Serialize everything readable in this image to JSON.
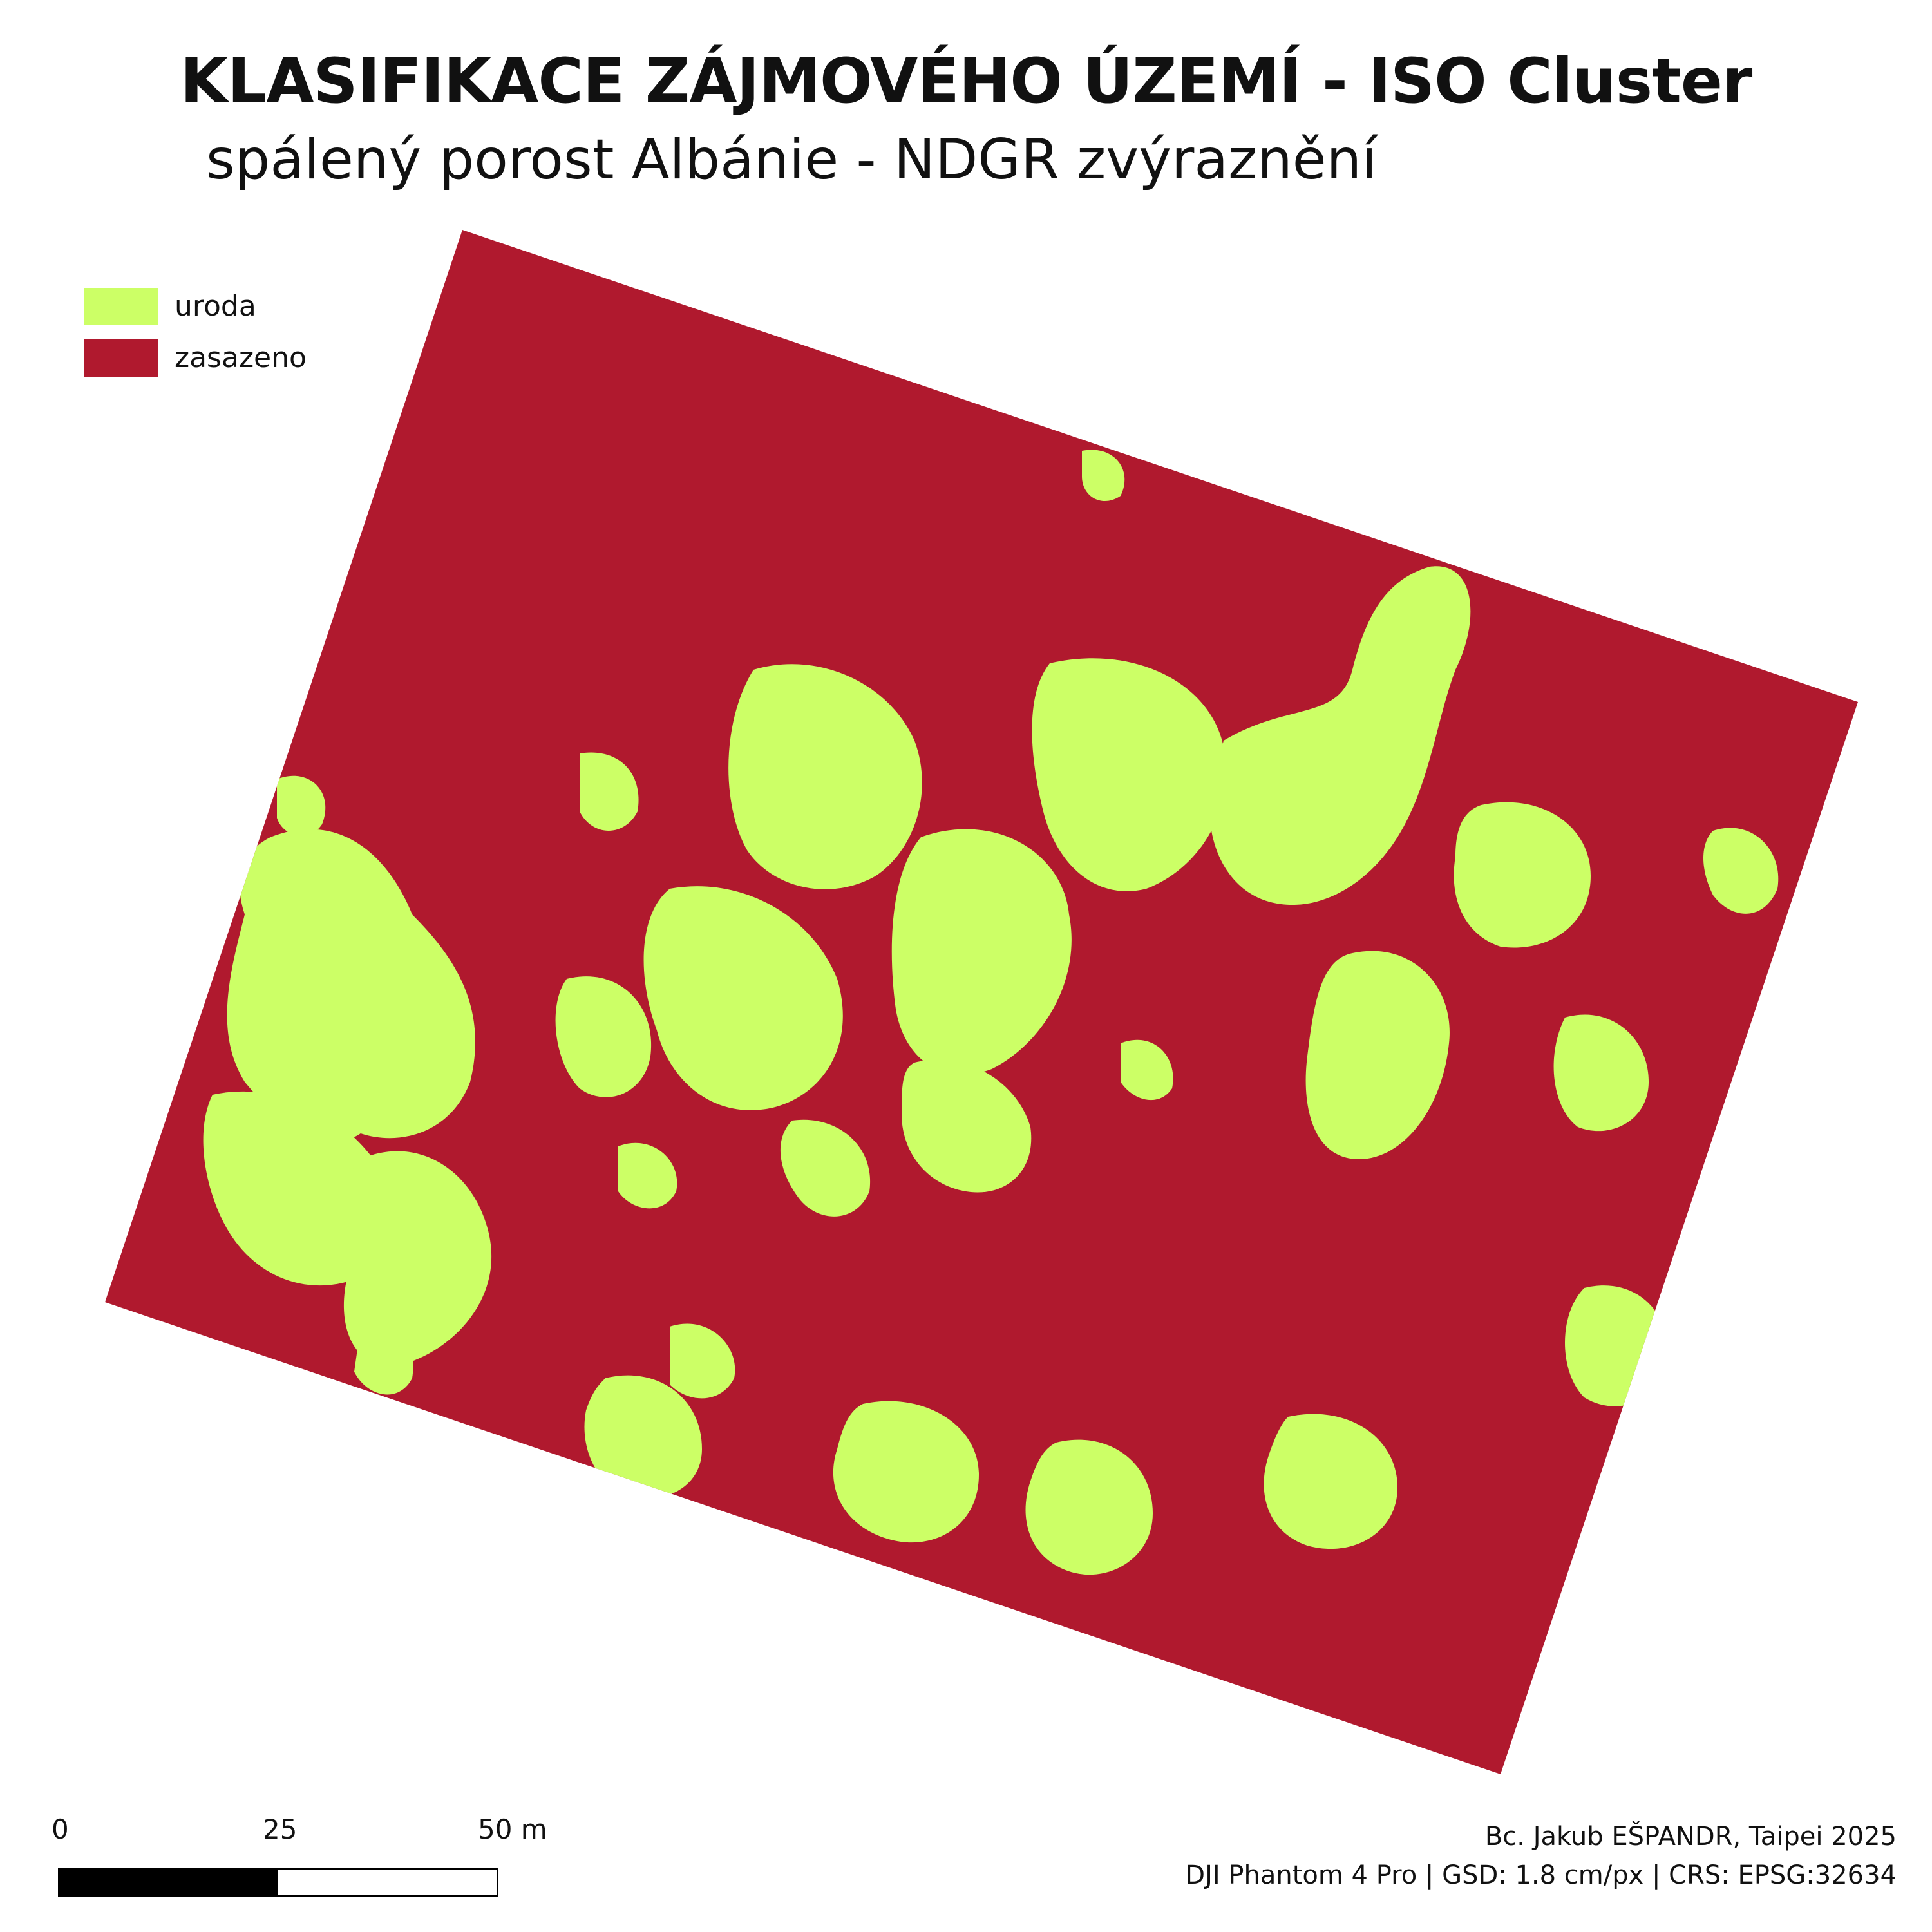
{
  "title": "KLASIFIKACE ZÁJMOVÉHO ÚZEMÍ - ISO Cluster",
  "subtitle": "spálený porost Albánie - NDGR zvýraznění",
  "legend": [
    {
      "label": "uroda",
      "color": "#CCFF66"
    },
    {
      "label": "zasazeno",
      "color": "#B0192E"
    }
  ],
  "scalebar": {
    "ticks": [
      "0",
      "25",
      "50 m"
    ]
  },
  "credits": {
    "line1": "Bc. Jakub EŠPANDR, Taipei 2025",
    "line2": "DJI Phantom 4 Pro | GSD: 1.8 cm/px | CRS: EPSG:32634"
  },
  "colors": {
    "crop": "#CCFF66",
    "burned": "#B0192E"
  }
}
